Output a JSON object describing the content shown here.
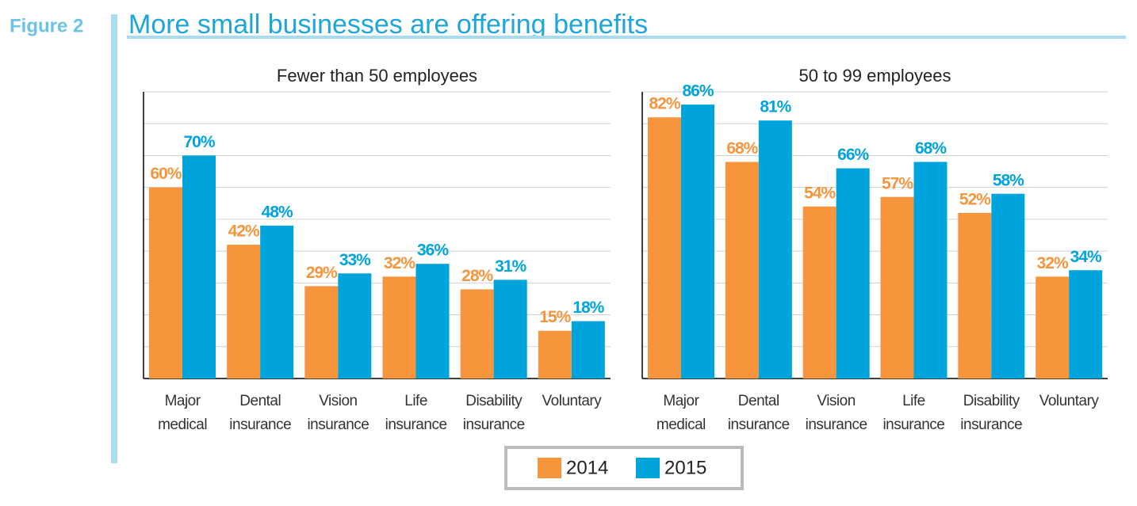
{
  "figure_label": "Figure 2",
  "title": "More small businesses are offering benefits",
  "chart_data": [
    {
      "type": "bar",
      "title": "Fewer than 50 employees",
      "categories": [
        "Major medical",
        "Dental insurance",
        "Vision insurance",
        "Life insurance",
        "Disability insurance",
        "Voluntary"
      ],
      "series": [
        {
          "name": "2014",
          "color": "#f7953d",
          "values": [
            60,
            42,
            29,
            32,
            28,
            15
          ],
          "value_labels": [
            "60%",
            "42%",
            "29%",
            "32%",
            "28%",
            "15%"
          ]
        },
        {
          "name": "2015",
          "color": "#00a4dc",
          "values": [
            70,
            48,
            33,
            36,
            31,
            18
          ],
          "value_labels": [
            "70%",
            "48%",
            "33%",
            "36%",
            "31%",
            "18%"
          ]
        }
      ],
      "ylim": [
        0,
        90
      ],
      "yticks": [
        0,
        10,
        20,
        30,
        40,
        50,
        60,
        70,
        80,
        90
      ],
      "grid": true
    },
    {
      "type": "bar",
      "title": "50 to 99 employees",
      "categories": [
        "Major medical",
        "Dental insurance",
        "Vision insurance",
        "Life insurance",
        "Disability insurance",
        "Voluntary"
      ],
      "series": [
        {
          "color": "#f7953d",
          "values": [
            82,
            68,
            54,
            57,
            52,
            32
          ],
          "value_labels": [
            "82%",
            "68%",
            "54%",
            "57%",
            "52%",
            "32%"
          ]
        },
        {
          "color": "#00a4dc",
          "values": [
            86,
            81,
            66,
            68,
            58,
            34
          ],
          "value_labels": [
            "86%",
            "81%",
            "66%",
            "68%",
            "58%",
            "34%"
          ]
        }
      ],
      "ylim": [
        0,
        90
      ],
      "yticks": [
        0,
        10,
        20,
        30,
        40,
        50,
        60,
        70,
        80,
        90
      ],
      "grid": true
    }
  ]
}
